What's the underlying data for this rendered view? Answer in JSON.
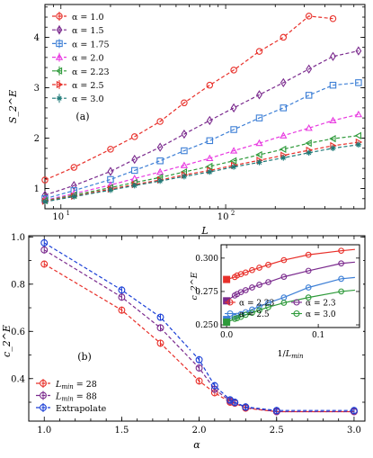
{
  "chart_data": [
    {
      "id": "a",
      "type": "line",
      "panel_label": "(a)",
      "xlabel": "L",
      "ylabel": "S_2^E",
      "xscale": "log",
      "xlim": [
        8,
        700
      ],
      "ylim": [
        0.6,
        4.65
      ],
      "xticks": [
        {
          "v": 10,
          "label": "10",
          "sup": "1"
        },
        {
          "v": 100,
          "label": "10",
          "sup": "2"
        }
      ],
      "yticks": [
        1,
        2,
        3,
        4
      ],
      "legend_position": "top-left",
      "series": [
        {
          "name": "α = 1.0",
          "color": "#e8302a",
          "marker": "circle",
          "x": [
            8,
            12,
            20,
            28,
            40,
            56,
            80,
            112,
            160,
            224,
            320,
            448
          ],
          "y": [
            1.17,
            1.42,
            1.78,
            2.03,
            2.33,
            2.7,
            3.05,
            3.35,
            3.72,
            4.0,
            4.42,
            4.37
          ]
        },
        {
          "name": "α = 1.5",
          "color": "#7b2b8e",
          "marker": "diamond",
          "x": [
            8,
            12,
            20,
            28,
            40,
            56,
            80,
            112,
            160,
            224,
            320,
            448,
            640
          ],
          "y": [
            0.87,
            1.06,
            1.34,
            1.58,
            1.82,
            2.08,
            2.35,
            2.6,
            2.86,
            3.1,
            3.37,
            3.62,
            3.73
          ]
        },
        {
          "name": "α = 1.75",
          "color": "#3d7fd6",
          "marker": "square",
          "x": [
            8,
            12,
            20,
            28,
            40,
            56,
            80,
            112,
            160,
            224,
            320,
            448,
            640
          ],
          "y": [
            0.8,
            0.96,
            1.18,
            1.36,
            1.55,
            1.75,
            1.95,
            2.17,
            2.4,
            2.6,
            2.85,
            3.05,
            3.1
          ]
        },
        {
          "name": "α = 2.0",
          "color": "#e83ae0",
          "marker": "triangle",
          "x": [
            8,
            12,
            20,
            28,
            40,
            56,
            80,
            112,
            160,
            224,
            320,
            448,
            640
          ],
          "y": [
            0.77,
            0.9,
            1.07,
            1.2,
            1.33,
            1.46,
            1.6,
            1.75,
            1.9,
            2.05,
            2.2,
            2.35,
            2.47
          ]
        },
        {
          "name": "α = 2.23",
          "color": "#2e9a3a",
          "marker": "left-triangle",
          "x": [
            8,
            12,
            20,
            28,
            40,
            56,
            80,
            112,
            160,
            224,
            320,
            448,
            640
          ],
          "y": [
            0.76,
            0.87,
            1.02,
            1.12,
            1.22,
            1.33,
            1.44,
            1.55,
            1.67,
            1.78,
            1.9,
            1.99,
            2.05
          ]
        },
        {
          "name": "α = 2.5",
          "color": "#e8302a",
          "marker": "right-triangle",
          "x": [
            8,
            12,
            20,
            28,
            40,
            56,
            80,
            112,
            160,
            224,
            320,
            448,
            640
          ],
          "y": [
            0.75,
            0.85,
            0.99,
            1.08,
            1.17,
            1.27,
            1.36,
            1.46,
            1.56,
            1.66,
            1.76,
            1.85,
            1.92
          ]
        },
        {
          "name": "α = 3.0",
          "color": "#1f7a78",
          "marker": "star",
          "x": [
            8,
            12,
            20,
            28,
            40,
            56,
            80,
            112,
            160,
            224,
            320,
            448,
            640
          ],
          "y": [
            0.74,
            0.84,
            0.97,
            1.06,
            1.15,
            1.24,
            1.33,
            1.43,
            1.52,
            1.61,
            1.71,
            1.8,
            1.87
          ]
        }
      ]
    },
    {
      "id": "b",
      "type": "line",
      "panel_label": "(b)",
      "xlabel": "α",
      "ylabel": "c_2^E",
      "xlim": [
        0.9,
        3.07
      ],
      "ylim": [
        0.22,
        1.005
      ],
      "xticks": [
        1.0,
        1.5,
        2.0,
        2.5,
        3.0
      ],
      "yticks": [
        0.4,
        0.6,
        0.8,
        1.0
      ],
      "legend_position": "bottom-left",
      "series": [
        {
          "name": "L_min = 28",
          "label_sub": "min",
          "label_rest": " = 28",
          "color": "#e8302a",
          "marker": "circle",
          "x": [
            1.0,
            1.5,
            1.75,
            2.0,
            2.1,
            2.2,
            2.23,
            2.3,
            2.5,
            3.0
          ],
          "y": [
            0.885,
            0.69,
            0.55,
            0.39,
            0.34,
            0.3,
            0.296,
            0.275,
            0.26,
            0.26
          ]
        },
        {
          "name": "L_min = 88",
          "label_sub": "min",
          "label_rest": " = 88",
          "color": "#7b2b8e",
          "marker": "circle",
          "x": [
            1.0,
            1.5,
            1.75,
            2.0,
            2.1,
            2.2,
            2.23,
            2.3,
            2.5,
            3.0
          ],
          "y": [
            0.945,
            0.745,
            0.615,
            0.445,
            0.355,
            0.305,
            0.298,
            0.278,
            0.26,
            0.26
          ]
        },
        {
          "name": "Extrapolate",
          "label_sub": "",
          "label_rest": "",
          "color": "#1a3fd6",
          "marker": "circle",
          "x": [
            1.0,
            1.5,
            1.75,
            2.0,
            2.1,
            2.2,
            2.23,
            2.3,
            2.5,
            3.0
          ],
          "y": [
            0.975,
            0.775,
            0.66,
            0.48,
            0.37,
            0.31,
            0.3,
            0.28,
            0.265,
            0.265
          ]
        }
      ]
    },
    {
      "id": "inset",
      "type": "scatter",
      "xlabel": "1/L_min",
      "ylabel": "c_2^E",
      "xlim": [
        -0.006,
        0.145
      ],
      "ylim": [
        0.248,
        0.31
      ],
      "xticks": [
        0.0,
        0.1
      ],
      "yticks": [
        0.25,
        0.275,
        0.3
      ],
      "ytick_labels": [
        "0.250",
        "0.275",
        "0.300"
      ],
      "legend_position": "bottom",
      "series": [
        {
          "name": "α = 2.23",
          "color": "#e8302a",
          "x": [
            0.0089,
            0.0114,
            0.0156,
            0.0208,
            0.0278,
            0.0357,
            0.0455,
            0.0625,
            0.0893,
            0.125
          ],
          "y": [
            0.2858,
            0.287,
            0.288,
            0.2892,
            0.291,
            0.2928,
            0.295,
            0.2985,
            0.3025,
            0.3055
          ],
          "extrapolated": 0.284
        },
        {
          "name": "α = 2.3",
          "color": "#7b2b8e",
          "x": [
            0.0089,
            0.0114,
            0.0156,
            0.0208,
            0.0278,
            0.0357,
            0.0455,
            0.0625,
            0.0893,
            0.125
          ],
          "y": [
            0.272,
            0.273,
            0.2745,
            0.276,
            0.278,
            0.28,
            0.282,
            0.286,
            0.2905,
            0.296
          ],
          "extrapolated": 0.268
        },
        {
          "name": "α = 2.5",
          "color": "#3d7fd6",
          "x": [
            0.0089,
            0.0114,
            0.0156,
            0.0208,
            0.0278,
            0.0357,
            0.0455,
            0.0625,
            0.0893,
            0.125
          ],
          "y": [
            0.256,
            0.2568,
            0.258,
            0.2595,
            0.2615,
            0.2638,
            0.2665,
            0.2705,
            0.278,
            0.2845
          ],
          "extrapolated": 0.254
        },
        {
          "name": "α = 3.0",
          "color": "#2e9a3a",
          "x": [
            0.0089,
            0.0114,
            0.0156,
            0.0208,
            0.0278,
            0.0357,
            0.0455,
            0.0625,
            0.0893,
            0.125
          ],
          "y": [
            0.2545,
            0.255,
            0.256,
            0.2575,
            0.259,
            0.261,
            0.2633,
            0.2665,
            0.2705,
            0.275
          ],
          "extrapolated": 0.252
        }
      ]
    }
  ]
}
